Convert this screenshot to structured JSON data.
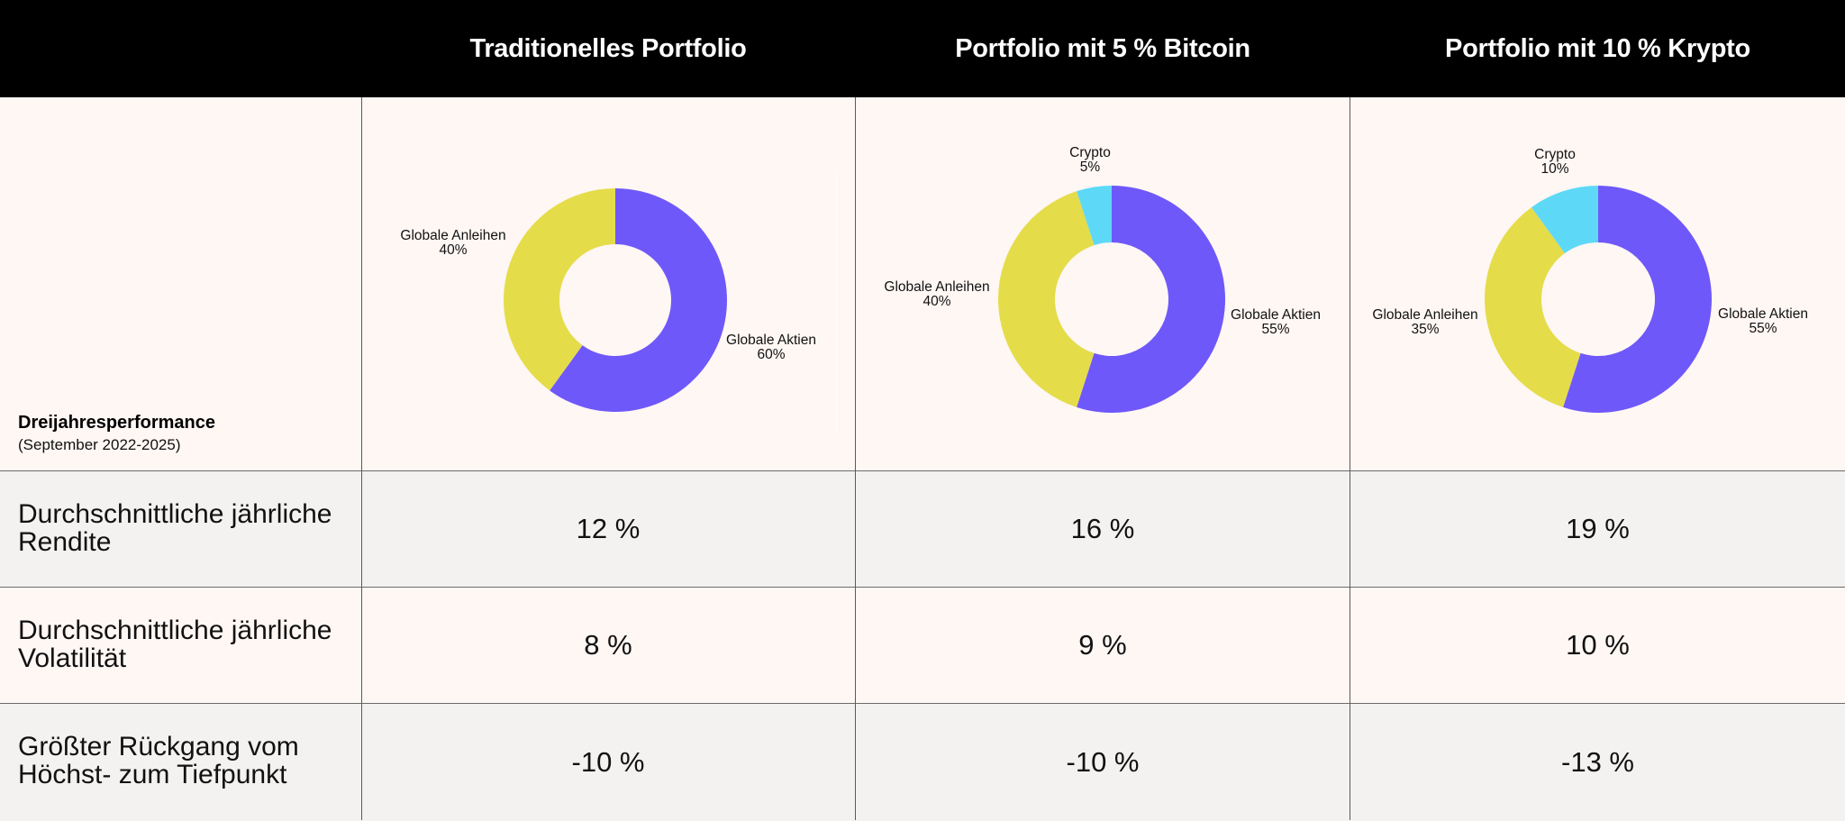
{
  "header": {
    "columns": [
      "Traditionelles Portfolio",
      "Portfolio mit 5 % Bitcoin",
      "Portfolio mit 10 % Krypto"
    ]
  },
  "performance": {
    "title": "Dreijahresperformance",
    "subtitle": "(September 2022-2025)"
  },
  "colors": {
    "aktien": "#6f58fa",
    "anleihen": "#e5dc4a",
    "crypto": "#5dd9f7",
    "header_bg": "#000000",
    "row_light": "#fff7f4",
    "row_grey": "#f3f2f0"
  },
  "chart_data": [
    {
      "type": "pie",
      "title": "Traditionelles Portfolio",
      "slices": [
        {
          "label": "Globale Aktien",
          "value": 60,
          "value_label": "60%",
          "color": "#6f58fa"
        },
        {
          "label": "Globale Anleihen",
          "value": 40,
          "value_label": "40%",
          "color": "#e5dc4a"
        }
      ]
    },
    {
      "type": "pie",
      "title": "Portfolio mit 5 % Bitcoin",
      "slices": [
        {
          "label": "Globale Aktien",
          "value": 55,
          "value_label": "55%",
          "color": "#6f58fa"
        },
        {
          "label": "Globale Anleihen",
          "value": 40,
          "value_label": "40%",
          "color": "#e5dc4a"
        },
        {
          "label": "Crypto",
          "value": 5,
          "value_label": "5%",
          "color": "#5dd9f7"
        }
      ]
    },
    {
      "type": "pie",
      "title": "Portfolio mit 10 % Krypto",
      "slices": [
        {
          "label": "Globale Aktien",
          "value": 55,
          "value_label": "55%",
          "color": "#6f58fa"
        },
        {
          "label": "Globale Anleihen",
          "value": 35,
          "value_label": "35%",
          "color": "#e5dc4a"
        },
        {
          "label": "Crypto",
          "value": 10,
          "value_label": "10%",
          "color": "#5dd9f7"
        }
      ]
    }
  ],
  "rows": [
    {
      "label": "Durchschnittliche jährliche Rendite",
      "values": [
        "12 %",
        "16 %",
        "19 %"
      ]
    },
    {
      "label": "Durchschnittliche jährliche Volatilität",
      "values": [
        "8 %",
        "9 %",
        "10 %"
      ]
    },
    {
      "label": "Größter Rückgang vom Höchst- zum Tiefpunkt",
      "values": [
        "-10 %",
        "-10 %",
        "-13 %"
      ]
    }
  ]
}
